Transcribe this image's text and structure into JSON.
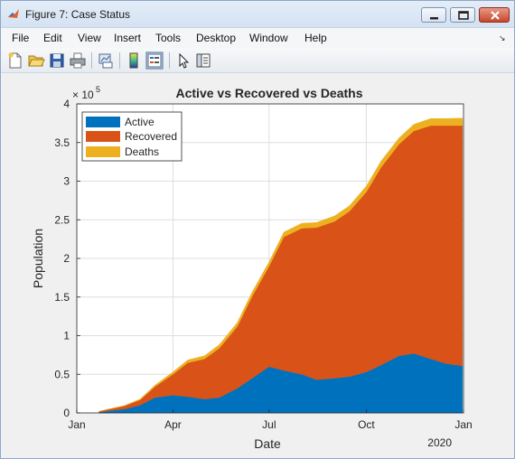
{
  "window": {
    "title": "Figure 7: Case Status"
  },
  "menu": {
    "items": [
      "File",
      "Edit",
      "View",
      "Insert",
      "Tools",
      "Desktop",
      "Window",
      "Help"
    ]
  },
  "toolbar": {
    "icons": [
      "new-figure-icon",
      "open-file-icon",
      "save-icon",
      "print-icon",
      "link-plot-icon",
      "insert-colorbar-icon",
      "insert-legend-icon",
      "pointer-icon",
      "property-inspector-icon"
    ]
  },
  "chart_data": {
    "type": "area",
    "title": "Active vs Recovered vs Deaths",
    "xlabel": "Date",
    "ylabel": "Population",
    "y_exponent_label": "× 10",
    "y_exponent": "5",
    "year_label": "2020",
    "x_tick_labels": [
      "Jan",
      "Apr",
      "Jul",
      "Oct",
      "Jan"
    ],
    "y_tick_labels": [
      "0",
      "0.5",
      "1",
      "1.5",
      "2",
      "2.5",
      "3",
      "3.5",
      "4"
    ],
    "ylim": [
      0,
      400000
    ],
    "xlim": [
      "2020-01-01",
      "2021-01-01"
    ],
    "grid": true,
    "legend_position": "top-left",
    "dates": [
      "2020-01-22",
      "2020-02-01",
      "2020-02-15",
      "2020-03-01",
      "2020-03-15",
      "2020-04-01",
      "2020-04-15",
      "2020-05-01",
      "2020-05-15",
      "2020-06-01",
      "2020-06-15",
      "2020-07-01",
      "2020-07-15",
      "2020-08-01",
      "2020-08-15",
      "2020-09-01",
      "2020-09-15",
      "2020-10-01",
      "2020-10-15",
      "2020-11-01",
      "2020-11-15",
      "2020-12-01",
      "2020-12-15",
      "2020-12-31"
    ],
    "series": [
      {
        "name": "Active",
        "color": "#0072BD",
        "values": [
          1000,
          3000,
          5000,
          10000,
          20000,
          23000,
          21000,
          18000,
          20000,
          32000,
          45000,
          60000,
          55000,
          50000,
          43000,
          45000,
          47000,
          53000,
          62000,
          74000,
          77000,
          70000,
          64000,
          61000
        ]
      },
      {
        "name": "Recovered",
        "color": "#D95319",
        "values": [
          1000,
          2000,
          4000,
          7000,
          14000,
          27000,
          44000,
          52000,
          64000,
          80000,
          106000,
          130000,
          173000,
          189000,
          197000,
          203000,
          214000,
          233000,
          256000,
          274000,
          288000,
          302000,
          308000,
          311000
        ]
      },
      {
        "name": "Deaths",
        "color": "#EDB120",
        "values": [
          100,
          300,
          500,
          1000,
          2000,
          3000,
          3500,
          4000,
          4500,
          5000,
          5500,
          5500,
          6000,
          6500,
          6500,
          7000,
          7000,
          7500,
          8000,
          8000,
          8500,
          9000,
          9000,
          9500
        ]
      }
    ]
  }
}
